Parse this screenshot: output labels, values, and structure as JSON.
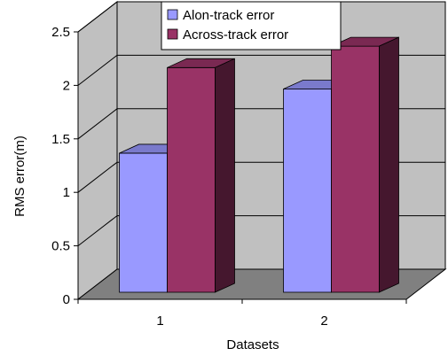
{
  "chart_data": {
    "type": "bar",
    "style": "3d-clustered-column",
    "categories": [
      "1",
      "2"
    ],
    "series": [
      {
        "name": "Alon-track error",
        "values": [
          1.3,
          1.9
        ],
        "color": "#9999ff"
      },
      {
        "name": "Across-track error",
        "values": [
          2.1,
          2.3
        ],
        "color": "#993366"
      }
    ],
    "y_ticks": [
      "0",
      "0.5",
      "1",
      "1.5",
      "2",
      "2.5"
    ],
    "xlabel": "Datasets",
    "ylabel": "RMS error(m)",
    "ylim": [
      0,
      2.5
    ],
    "grid": true,
    "legend_position": "top"
  },
  "colors": {
    "wall": "#c0c0c0",
    "floor": "#808080",
    "gridline": "#000000"
  }
}
